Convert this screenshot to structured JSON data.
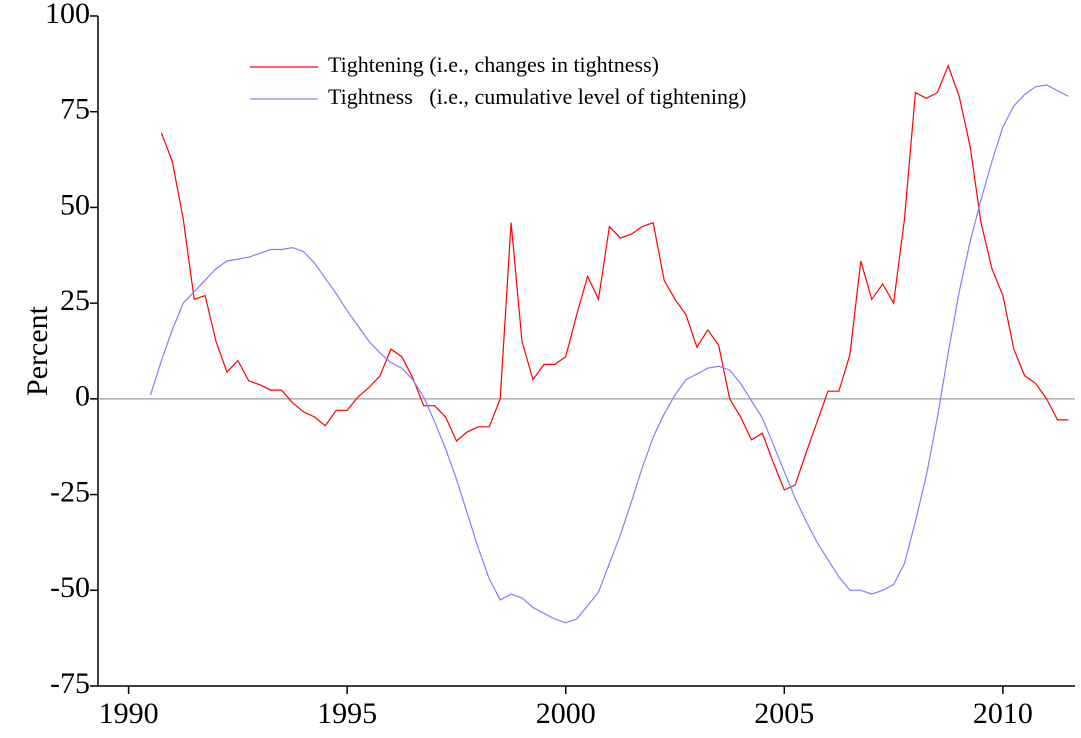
{
  "chart_data": {
    "type": "line",
    "ylabel": "Percent",
    "xlim": [
      1989.3,
      2011.65
    ],
    "ylim": [
      -75,
      100
    ],
    "xticks": [
      1990,
      1995,
      2000,
      2005,
      2010
    ],
    "yticks": [
      -75,
      -50,
      -25,
      0,
      25,
      50,
      75,
      100
    ],
    "zero_line": 0,
    "legend": "upper-center",
    "series": [
      {
        "name": "Tightening (i.e., changes in tightness)",
        "color": "#ff0000",
        "x": [
          1990.75,
          1991,
          1991.25,
          1991.5,
          1991.75,
          1992,
          1992.25,
          1992.5,
          1992.75,
          1993,
          1993.25,
          1993.5,
          1993.75,
          1994,
          1994.25,
          1994.5,
          1994.75,
          1995,
          1995.25,
          1995.5,
          1995.75,
          1996,
          1996.25,
          1996.5,
          1996.75,
          1997,
          1997.25,
          1997.5,
          1997.75,
          1998,
          1998.25,
          1998.5,
          1998.75,
          1999,
          1999.25,
          1999.5,
          1999.75,
          2000,
          2000.25,
          2000.5,
          2000.75,
          2001,
          2001.25,
          2001.5,
          2001.75,
          2002,
          2002.25,
          2002.5,
          2002.75,
          2003,
          2003.25,
          2003.5,
          2003.75,
          2004,
          2004.25,
          2004.5,
          2004.75,
          2005,
          2005.25,
          2005.5,
          2005.75,
          2006,
          2006.25,
          2006.5,
          2006.75,
          2007,
          2007.25,
          2007.5,
          2007.75,
          2008,
          2008.25,
          2008.5,
          2008.75,
          2009,
          2009.25,
          2009.5,
          2009.75,
          2010,
          2010.25,
          2010.5,
          2010.75,
          2011,
          2011.25,
          2011.5
        ],
        "values": [
          69.5,
          62,
          47,
          26,
          27,
          15,
          7,
          10,
          4.7,
          3.7,
          2.3,
          2.3,
          -1,
          -3.4,
          -4.7,
          -7,
          -3,
          -3,
          0.5,
          3,
          6,
          13,
          11,
          5.5,
          -1.8,
          -1.8,
          -4.7,
          -11,
          -8.6,
          -7.3,
          -7.3,
          0,
          46,
          15,
          5,
          9,
          9,
          11,
          22,
          32,
          26,
          45,
          42,
          43,
          45,
          46,
          31,
          26,
          22,
          13.5,
          18,
          14,
          0,
          -4.7,
          -10.7,
          -9,
          -16.7,
          -23.8,
          -22.5,
          -14,
          -6,
          2,
          2,
          11.5,
          36,
          26,
          30,
          25,
          47,
          80,
          78.5,
          80,
          87,
          79,
          66,
          46,
          34,
          27,
          13,
          6,
          4,
          0,
          -5.5,
          -5.5
        ]
      },
      {
        "name": "Tightness   (i.e., cumulative level of tightening)",
        "color": "#8080ff",
        "x": [
          1990.5,
          1990.75,
          1991,
          1991.25,
          1991.5,
          1991.75,
          1992,
          1992.25,
          1992.5,
          1992.75,
          1993,
          1993.25,
          1993.5,
          1993.75,
          1994,
          1994.25,
          1994.5,
          1994.75,
          1995,
          1995.25,
          1995.5,
          1995.75,
          1996,
          1996.25,
          1996.5,
          1996.75,
          1997,
          1997.25,
          1997.5,
          1997.75,
          1998,
          1998.25,
          1998.5,
          1998.75,
          1999,
          1999.25,
          1999.5,
          1999.75,
          2000,
          2000.25,
          2000.5,
          2000.75,
          2001,
          2001.25,
          2001.5,
          2001.75,
          2002,
          2002.25,
          2002.5,
          2002.75,
          2003,
          2003.25,
          2003.5,
          2003.75,
          2004,
          2004.25,
          2004.5,
          2004.75,
          2005,
          2005.25,
          2005.5,
          2005.75,
          2006,
          2006.25,
          2006.5,
          2006.75,
          2007,
          2007.25,
          2007.5,
          2007.75,
          2008,
          2008.25,
          2008.5,
          2008.75,
          2009,
          2009.25,
          2009.5,
          2009.75,
          2010,
          2010.25,
          2010.5,
          2010.75,
          2011,
          2011.25,
          2011.5
        ],
        "values": [
          1,
          10,
          18,
          25,
          28,
          31,
          34,
          36,
          36.5,
          37,
          38,
          39,
          39,
          39.5,
          38.5,
          35.5,
          31.5,
          27.5,
          23,
          19,
          15,
          12,
          9.5,
          8,
          5,
          0.5,
          -6,
          -13,
          -21,
          -30,
          -39,
          -47,
          -52.5,
          -51,
          -52,
          -54.5,
          -56,
          -57.5,
          -58.5,
          -57.5,
          -54,
          -50.5,
          -43,
          -35.5,
          -27,
          -18,
          -10,
          -4,
          1,
          5,
          6.5,
          8,
          8.5,
          7.5,
          4,
          -0.5,
          -5,
          -12,
          -19,
          -26,
          -32,
          -37.5,
          -42,
          -46.5,
          -50,
          -50,
          -51,
          -50,
          -48.5,
          -43,
          -32,
          -20,
          -5,
          12,
          28,
          41,
          52,
          62,
          71,
          76.5,
          79.5,
          81.5,
          82,
          80.5,
          79
        ]
      }
    ]
  }
}
